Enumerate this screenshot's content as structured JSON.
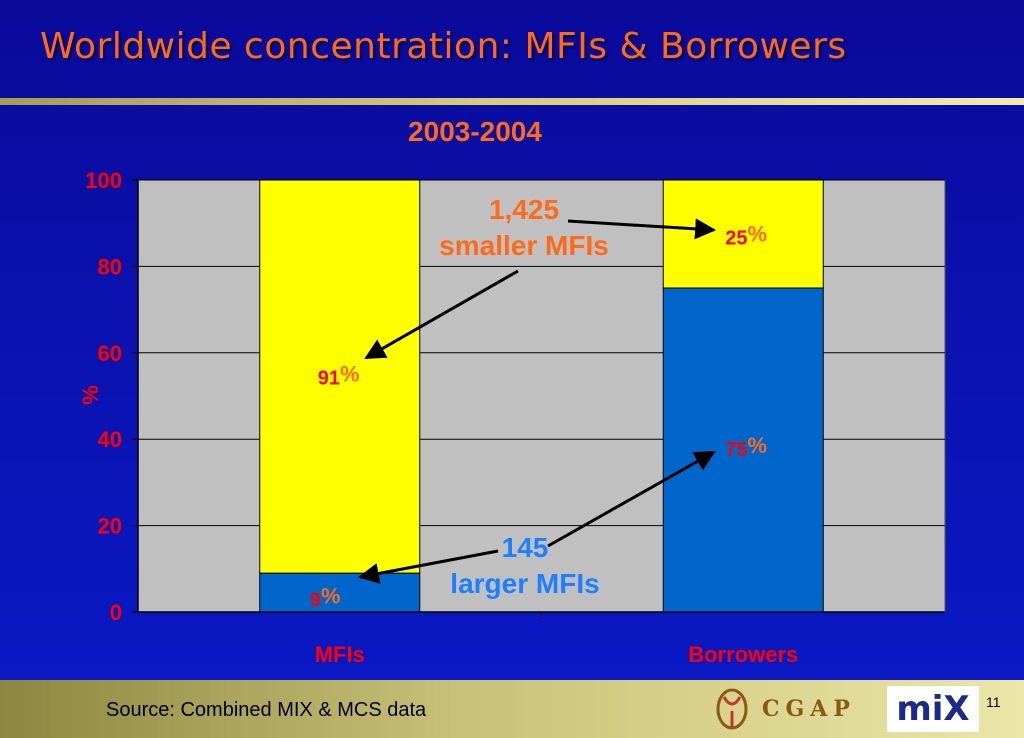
{
  "slide": {
    "title": "Worldwide concentration:  MFIs & Borrowers",
    "subtitle": "2003-2004",
    "page_number": "11"
  },
  "annotations": {
    "smaller": [
      "1,425",
      "smaller MFIs"
    ],
    "larger": [
      "145",
      "larger MFIs"
    ]
  },
  "footer": {
    "source": "Source: Combined MIX & MCS data",
    "logo_cgap": "CGAP",
    "logo_mix": "miX"
  },
  "colors": {
    "background": "#0b14b4",
    "plot_bg": "#c0c0c0",
    "larger": "#0066cc",
    "smaller": "#ffff00",
    "label_red": "#ff0000",
    "label_orange": "#ff6a1a"
  },
  "chart_data": {
    "type": "bar",
    "stacked": true,
    "categories": [
      "MFIs",
      "Borrowers"
    ],
    "series": [
      {
        "values": [
          9,
          75
        ],
        "color": "#0066cc"
      },
      {
        "values": [
          91,
          25
        ],
        "color": "#ffff00"
      }
    ],
    "data_labels": [
      "9",
      "91",
      "75",
      "25"
    ],
    "label_suffix": "%",
    "ylabel": "%",
    "ylim": [
      0,
      100
    ],
    "yticks": [
      0,
      20,
      40,
      60,
      80,
      100
    ],
    "grid": true
  }
}
